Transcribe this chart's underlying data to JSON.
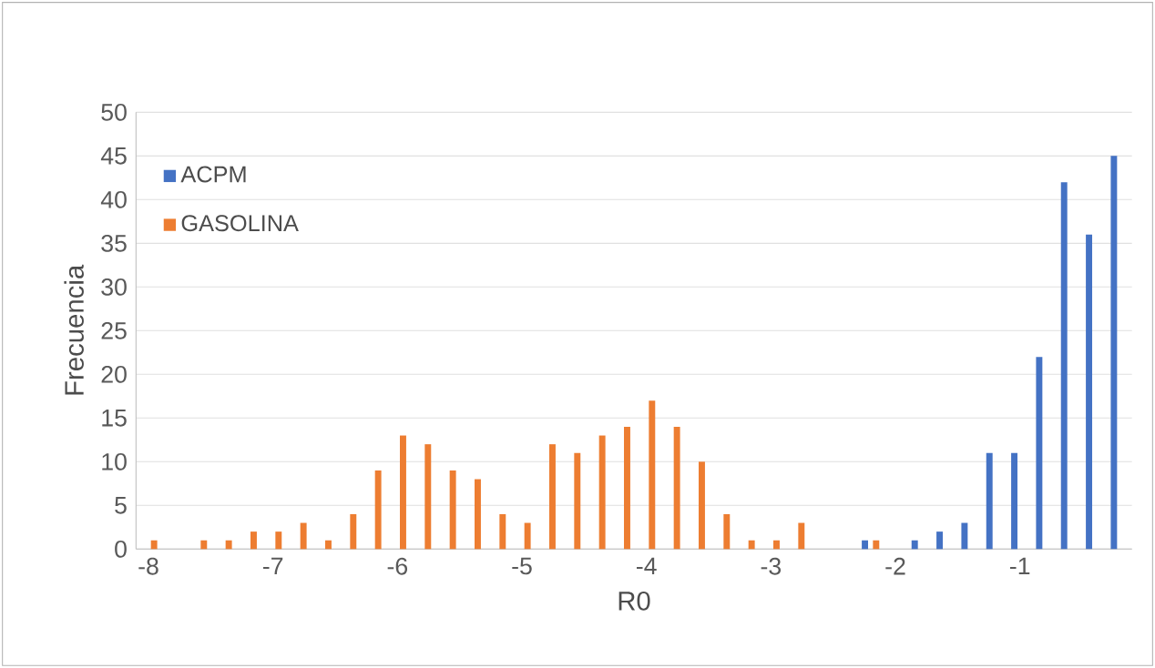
{
  "chart_data": {
    "type": "bar",
    "xlabel": "R0",
    "ylabel": "Frecuencia",
    "series": [
      {
        "name": "ACPM",
        "color": "#4472c4",
        "x": [
          -2.2,
          -1.8,
          -1.6,
          -1.4,
          -1.2,
          -1.0,
          -0.8,
          -0.6,
          -0.4,
          -0.2
        ],
        "values": [
          1,
          1,
          2,
          3,
          11,
          11,
          22,
          42,
          36,
          45
        ]
      },
      {
        "name": "GASOLINA",
        "color": "#ed7d31",
        "x": [
          -8.0,
          -7.6,
          -7.4,
          -7.2,
          -7.0,
          -6.8,
          -6.6,
          -6.4,
          -6.2,
          -6.0,
          -5.8,
          -5.6,
          -5.4,
          -5.2,
          -5.0,
          -4.8,
          -4.6,
          -4.4,
          -4.2,
          -4.0,
          -3.8,
          -3.6,
          -3.4,
          -3.2,
          -3.0,
          -2.8,
          -2.2
        ],
        "values": [
          1,
          1,
          1,
          2,
          2,
          3,
          1,
          4,
          9,
          13,
          12,
          9,
          8,
          4,
          3,
          12,
          11,
          13,
          14,
          17,
          14,
          10,
          4,
          1,
          1,
          3,
          1
        ]
      }
    ],
    "xlim": [
      -8.1,
      -0.1
    ],
    "xticks": [
      -8,
      -7,
      -6,
      -5,
      -4,
      -3,
      -2,
      -1
    ],
    "ylim": [
      0,
      50
    ],
    "yticks": [
      0,
      5,
      10,
      15,
      20,
      25,
      30,
      35,
      40,
      45,
      50
    ],
    "grid": "y",
    "legend": "top left"
  }
}
